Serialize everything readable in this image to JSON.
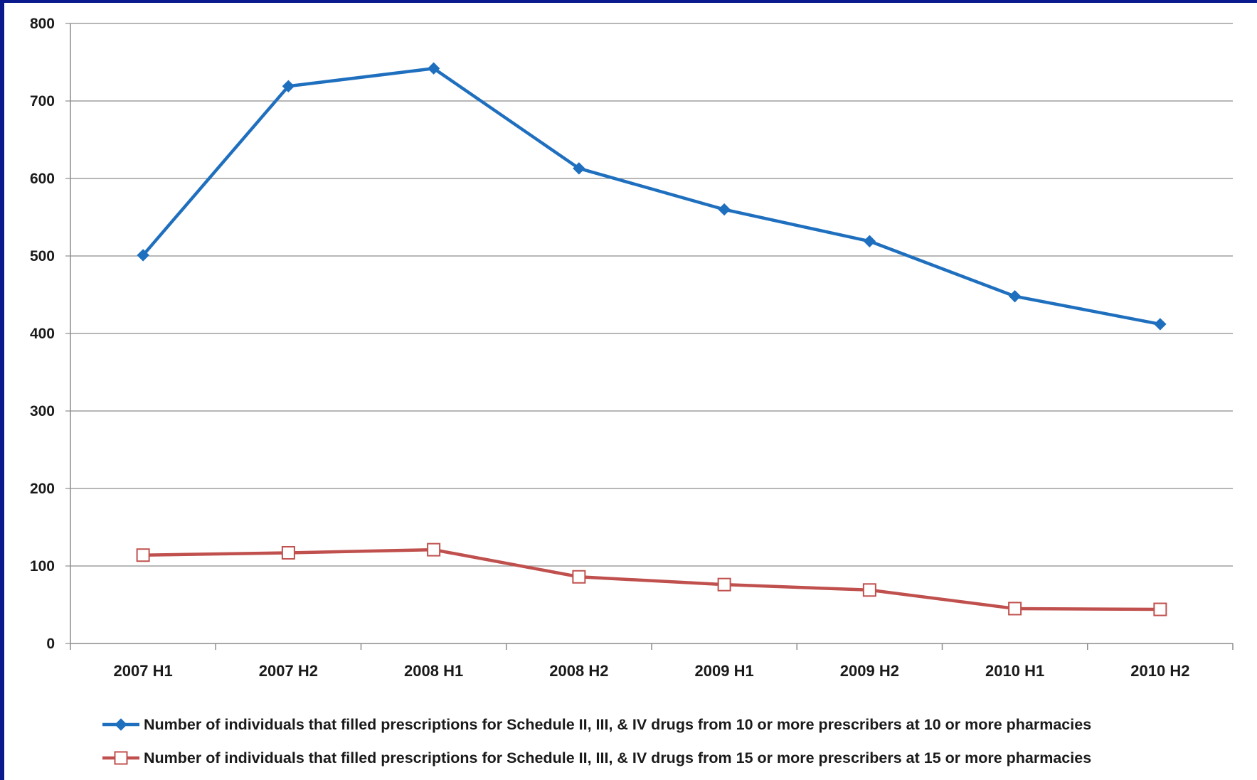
{
  "chart_data": {
    "type": "line",
    "categories": [
      "2007 H1",
      "2007 H2",
      "2008 H1",
      "2008 H2",
      "2009 H1",
      "2009 H2",
      "2010 H1",
      "2010 H2"
    ],
    "ylim": [
      0,
      800
    ],
    "yticks": [
      0,
      100,
      200,
      300,
      400,
      500,
      600,
      700,
      800
    ],
    "grid": true,
    "legend_position": "bottom",
    "series": [
      {
        "name": "Number of individuals that filled prescriptions for Schedule II, III, & IV drugs from 10 or more prescribers at 10 or more pharmacies",
        "values": [
          501,
          719,
          742,
          613,
          560,
          519,
          448,
          412
        ],
        "color": "#1f6fbf",
        "marker": "diamond"
      },
      {
        "name": "Number of individuals that filled prescriptions for Schedule II, III, & IV drugs from 15 or more prescribers at 15 or more pharmacies",
        "values": [
          114,
          117,
          121,
          86,
          76,
          69,
          45,
          44
        ],
        "color": "#c0504d",
        "marker": "open-square"
      }
    ]
  }
}
